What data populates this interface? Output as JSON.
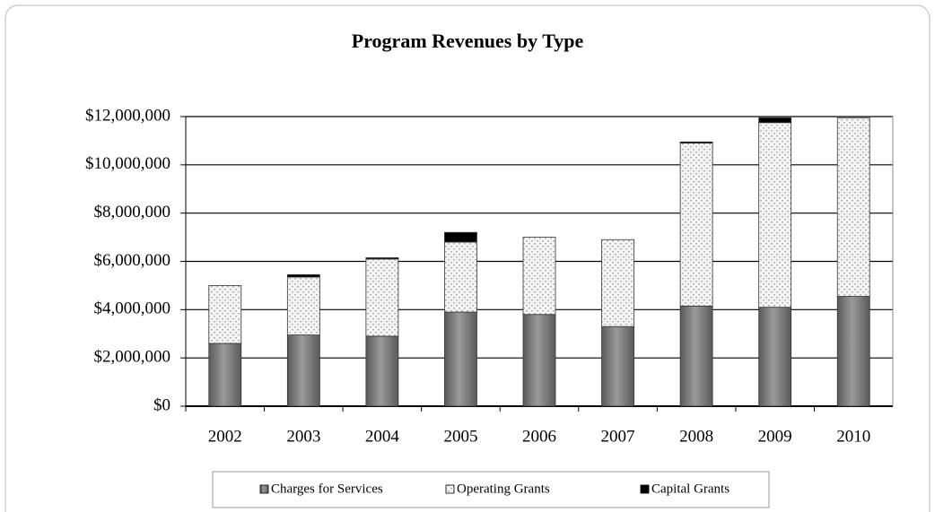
{
  "chart_data": {
    "type": "bar",
    "stacked": true,
    "title": "Program Revenues by Type",
    "categories": [
      "2002",
      "2003",
      "2004",
      "2005",
      "2006",
      "2007",
      "2008",
      "2009",
      "2010"
    ],
    "series": [
      {
        "name": "Charges for Services",
        "color": "#7f7f7f",
        "values": [
          2600000,
          2950000,
          2900000,
          3900000,
          3800000,
          3300000,
          4150000,
          4100000,
          4550000
        ]
      },
      {
        "name": "Operating Grants",
        "color": "#b0b0b0",
        "values": [
          2400000,
          2400000,
          3200000,
          2900000,
          3200000,
          3600000,
          6750000,
          7650000,
          7400000
        ]
      },
      {
        "name": "Capital Grants",
        "color": "#000000",
        "values": [
          0,
          100000,
          50000,
          400000,
          0,
          0,
          50000,
          200000,
          0
        ]
      }
    ],
    "ylim": [
      0,
      12000000
    ],
    "yticks": [
      {
        "value": 0,
        "label": "$0"
      },
      {
        "value": 2000000,
        "label": "$2,000,000"
      },
      {
        "value": 4000000,
        "label": "$4,000,000"
      },
      {
        "value": 6000000,
        "label": "$6,000,000"
      },
      {
        "value": 8000000,
        "label": "$8,000,000"
      },
      {
        "value": 10000000,
        "label": "$10,000,000"
      },
      {
        "value": 12000000,
        "label": "$12,000,000"
      }
    ],
    "grid": true,
    "legend": "bottom"
  }
}
